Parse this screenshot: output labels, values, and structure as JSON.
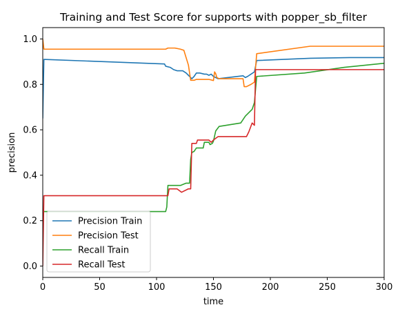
{
  "chart_data": {
    "type": "line",
    "title": "Training and Test Score for supports with popper_sb_filter",
    "xlabel": "time",
    "ylabel": "precision",
    "xlim": [
      0,
      300
    ],
    "ylim": [
      -0.05,
      1.05
    ],
    "xticks": [
      0,
      50,
      100,
      150,
      200,
      250,
      300
    ],
    "yticks": [
      0.0,
      0.2,
      0.4,
      0.6,
      0.8,
      1.0
    ],
    "xtick_labels": [
      "0",
      "50",
      "100",
      "150",
      "200",
      "250",
      "300"
    ],
    "ytick_labels": [
      "0.0",
      "0.2",
      "0.4",
      "0.6",
      "0.8",
      "1.0"
    ],
    "grid": false,
    "legend_position": "lower-left",
    "series": [
      {
        "name": "Precision Train",
        "color": "#1f77b4",
        "points": [
          [
            0,
            0.65
          ],
          [
            1,
            0.91
          ],
          [
            107,
            0.89
          ],
          [
            108,
            0.88
          ],
          [
            112,
            0.875
          ],
          [
            115,
            0.865
          ],
          [
            118,
            0.86
          ],
          [
            123,
            0.86
          ],
          [
            126,
            0.85
          ],
          [
            129,
            0.835
          ],
          [
            131,
            0.825
          ],
          [
            133,
            0.835
          ],
          [
            135,
            0.85
          ],
          [
            138,
            0.85
          ],
          [
            142,
            0.845
          ],
          [
            144,
            0.845
          ],
          [
            146,
            0.84
          ],
          [
            148,
            0.845
          ],
          [
            150,
            0.835
          ],
          [
            152,
            0.83
          ],
          [
            154,
            0.825
          ],
          [
            176,
            0.838
          ],
          [
            178,
            0.83
          ],
          [
            180,
            0.835
          ],
          [
            183,
            0.845
          ],
          [
            186,
            0.855
          ],
          [
            188,
            0.905
          ],
          [
            235,
            0.915
          ],
          [
            270,
            0.918
          ],
          [
            300,
            0.918
          ]
        ]
      },
      {
        "name": "Precision Test",
        "color": "#ff7f0e",
        "points": [
          [
            0,
            1.0
          ],
          [
            1,
            0.955
          ],
          [
            108,
            0.955
          ],
          [
            110,
            0.96
          ],
          [
            116,
            0.96
          ],
          [
            121,
            0.955
          ],
          [
            124,
            0.95
          ],
          [
            128,
            0.885
          ],
          [
            130,
            0.818
          ],
          [
            133,
            0.818
          ],
          [
            135,
            0.822
          ],
          [
            146,
            0.822
          ],
          [
            150,
            0.817
          ],
          [
            151,
            0.855
          ],
          [
            152,
            0.847
          ],
          [
            153,
            0.83
          ],
          [
            155,
            0.825
          ],
          [
            176,
            0.825
          ],
          [
            177,
            0.79
          ],
          [
            179,
            0.79
          ],
          [
            183,
            0.8
          ],
          [
            186,
            0.81
          ],
          [
            188,
            0.935
          ],
          [
            235,
            0.968
          ],
          [
            300,
            0.968
          ]
        ]
      },
      {
        "name": "Recall Train",
        "color": "#2ca02c",
        "points": [
          [
            0,
            0.24
          ],
          [
            108,
            0.24
          ],
          [
            109,
            0.26
          ],
          [
            110,
            0.355
          ],
          [
            121,
            0.355
          ],
          [
            126,
            0.365
          ],
          [
            129,
            0.365
          ],
          [
            130,
            0.47
          ],
          [
            131,
            0.5
          ],
          [
            133,
            0.505
          ],
          [
            135,
            0.52
          ],
          [
            141,
            0.52
          ],
          [
            142,
            0.545
          ],
          [
            145,
            0.545
          ],
          [
            146,
            0.545
          ],
          [
            147,
            0.535
          ],
          [
            149,
            0.54
          ],
          [
            150,
            0.55
          ],
          [
            152,
            0.595
          ],
          [
            155,
            0.615
          ],
          [
            174,
            0.63
          ],
          [
            178,
            0.66
          ],
          [
            184,
            0.69
          ],
          [
            186,
            0.72
          ],
          [
            188,
            0.835
          ],
          [
            230,
            0.85
          ],
          [
            265,
            0.875
          ],
          [
            300,
            0.893
          ]
        ]
      },
      {
        "name": "Recall Test",
        "color": "#d62728",
        "points": [
          [
            0,
            0.0
          ],
          [
            1,
            0.31
          ],
          [
            110,
            0.31
          ],
          [
            111,
            0.34
          ],
          [
            118,
            0.34
          ],
          [
            122,
            0.325
          ],
          [
            128,
            0.34
          ],
          [
            130,
            0.34
          ],
          [
            131,
            0.54
          ],
          [
            135,
            0.54
          ],
          [
            136,
            0.555
          ],
          [
            146,
            0.555
          ],
          [
            148,
            0.545
          ],
          [
            150,
            0.555
          ],
          [
            154,
            0.57
          ],
          [
            179,
            0.57
          ],
          [
            181,
            0.59
          ],
          [
            184,
            0.63
          ],
          [
            186,
            0.62
          ],
          [
            187,
            0.865
          ],
          [
            300,
            0.865
          ]
        ]
      }
    ]
  }
}
